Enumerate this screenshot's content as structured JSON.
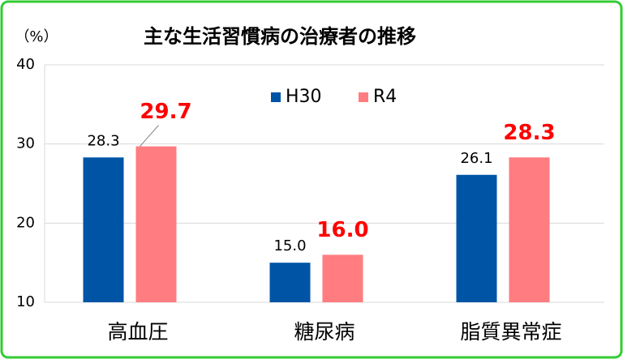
{
  "chart_data": {
    "type": "bar",
    "title": "主な生活習慣病の治療者の推移",
    "y_unit": "（%）",
    "categories": [
      "高血圧",
      "糖尿病",
      "脂質異常症"
    ],
    "series": [
      {
        "name": "H30",
        "color": "#0054a6",
        "values": [
          28.3,
          15.0,
          26.1
        ],
        "value_labels": [
          "28.3",
          "15.0",
          "26.1"
        ],
        "label_color": "#000000"
      },
      {
        "name": "R4",
        "color": "#ff7c80",
        "values": [
          29.7,
          16.0,
          28.3
        ],
        "value_labels": [
          "29.7",
          "16.0",
          "28.3"
        ],
        "label_color": "#ff0000"
      }
    ],
    "ylim": [
      10,
      40
    ],
    "yticks": [
      10,
      20,
      30,
      40
    ],
    "grid": true,
    "legend": "top"
  }
}
